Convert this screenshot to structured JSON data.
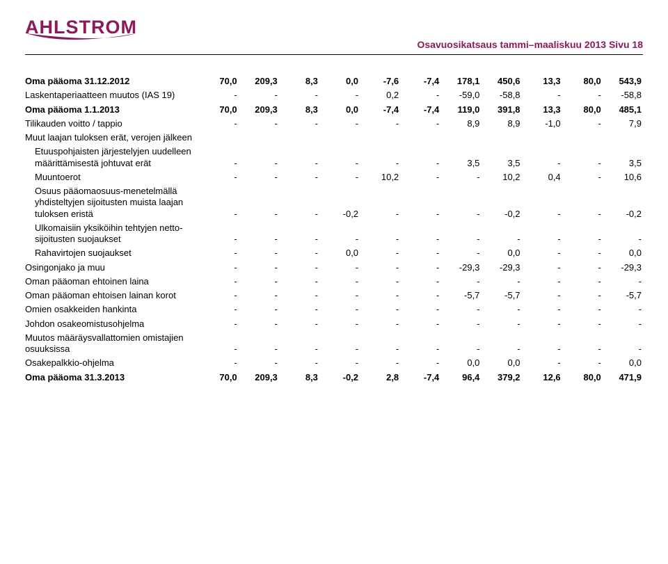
{
  "colors": {
    "brand": "#8a1a5a",
    "text": "#000000",
    "rule": "#000000",
    "bg": "#ffffff"
  },
  "logo_text": "AHLSTROM",
  "report_title": "Osavuosikatsaus tammi–maaliskuu 2013 Sivu 18",
  "table": {
    "rows": [
      {
        "label": "Oma pääoma 31.12.2012",
        "bold": true,
        "values": [
          "70,0",
          "209,3",
          "8,3",
          "0,0",
          "-7,6",
          "-7,4",
          "178,1",
          "450,6",
          "13,3",
          "80,0",
          "543,9"
        ]
      },
      {
        "label": "Laskentaperiaatteen muutos (IAS 19)",
        "bold": false,
        "values": [
          "-",
          "-",
          "-",
          "-",
          "0,2",
          "-",
          "-59,0",
          "-58,8",
          "-",
          "-",
          "-58,8"
        ]
      },
      {
        "label": "Oma pääoma 1.1.2013",
        "bold": true,
        "values": [
          "70,0",
          "209,3",
          "8,3",
          "0,0",
          "-7,4",
          "-7,4",
          "119,0",
          "391,8",
          "13,3",
          "80,0",
          "485,1"
        ]
      },
      {
        "label": "Tilikauden voitto / tappio",
        "bold": false,
        "values": [
          "-",
          "-",
          "-",
          "-",
          "-",
          "-",
          "8,9",
          "8,9",
          "-1,0",
          "-",
          "7,9"
        ]
      },
      {
        "label": "Muut laajan tuloksen erät, verojen jälkeen",
        "bold": false,
        "values": [
          "",
          "",
          "",
          "",
          "",
          "",
          "",
          "",
          "",
          "",
          ""
        ]
      },
      {
        "label": "Etuuspohjaisten järjestelyjen uudelleen määrittämisestä johtuvat erät",
        "indent": 1,
        "bold": false,
        "values": [
          "-",
          "-",
          "-",
          "-",
          "-",
          "-",
          "3,5",
          "3,5",
          "-",
          "-",
          "3,5"
        ]
      },
      {
        "label": "Muuntoerot",
        "indent": 1,
        "bold": false,
        "values": [
          "-",
          "-",
          "-",
          "-",
          "10,2",
          "-",
          "-",
          "10,2",
          "0,4",
          "-",
          "10,6"
        ]
      },
      {
        "label": "Osuus pääomaosuus-menetelmällä yhdisteltyjen sijoitusten muista laajan tuloksen eristä",
        "indent": 1,
        "bold": false,
        "values": [
          "-",
          "-",
          "-",
          "-0,2",
          "-",
          "-",
          "-",
          "-0,2",
          "-",
          "-",
          "-0,2"
        ]
      },
      {
        "label": "Ulkomaisiin yksiköihin tehtyjen netto-sijoitusten suojaukset",
        "indent": 1,
        "bold": false,
        "values": [
          "-",
          "-",
          "-",
          "-",
          "-",
          "-",
          "-",
          "-",
          "-",
          "-",
          "-"
        ]
      },
      {
        "label": "Rahavirtojen suojaukset",
        "indent": 1,
        "bold": false,
        "values": [
          "-",
          "-",
          "-",
          "0,0",
          "-",
          "-",
          "-",
          "0,0",
          "-",
          "-",
          "0,0"
        ]
      },
      {
        "label": "Osingonjako ja muu",
        "bold": false,
        "values": [
          "-",
          "-",
          "-",
          "-",
          "-",
          "-",
          "-29,3",
          "-29,3",
          "-",
          "-",
          "-29,3"
        ]
      },
      {
        "label": "Oman pääoman ehtoinen laina",
        "bold": false,
        "values": [
          "-",
          "-",
          "-",
          "-",
          "-",
          "-",
          "-",
          "-",
          "-",
          "-",
          "-"
        ]
      },
      {
        "label": "Oman pääoman ehtoisen lainan korot",
        "bold": false,
        "values": [
          "-",
          "-",
          "-",
          "-",
          "-",
          "-",
          "-5,7",
          "-5,7",
          "-",
          "-",
          "-5,7"
        ]
      },
      {
        "label": "Omien osakkeiden hankinta",
        "bold": false,
        "values": [
          "-",
          "-",
          "-",
          "-",
          "-",
          "-",
          "-",
          "-",
          "-",
          "-",
          "-"
        ]
      },
      {
        "label": "Johdon osakeomistusohjelma",
        "bold": false,
        "values": [
          "-",
          "-",
          "-",
          "-",
          "-",
          "-",
          "-",
          "-",
          "-",
          "-",
          "-"
        ]
      },
      {
        "label": "Muutos määräysvallattomien omistajien osuuksissa",
        "bold": false,
        "values": [
          "-",
          "-",
          "-",
          "-",
          "-",
          "-",
          "-",
          "-",
          "-",
          "-",
          "-"
        ]
      },
      {
        "label": "Osakepalkkio-ohjelma",
        "bold": false,
        "values": [
          "-",
          "-",
          "-",
          "-",
          "-",
          "-",
          "0,0",
          "0,0",
          "-",
          "-",
          "0,0"
        ]
      },
      {
        "label": "Oma pääoma 31.3.2013",
        "bold": true,
        "values": [
          "70,0",
          "209,3",
          "8,3",
          "-0,2",
          "2,8",
          "-7,4",
          "96,4",
          "379,2",
          "12,6",
          "80,0",
          "471,9"
        ]
      }
    ]
  }
}
